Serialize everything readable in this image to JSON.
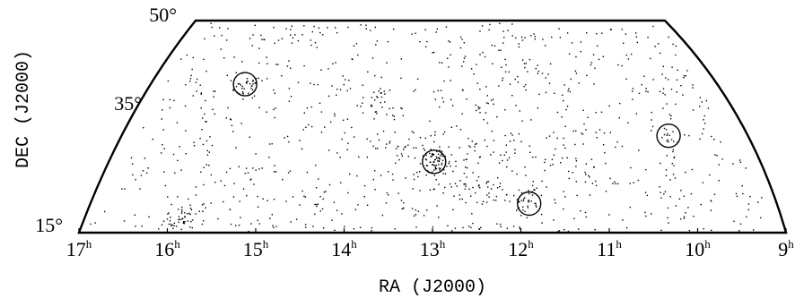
{
  "chart_data": {
    "type": "scatter",
    "projection": "wedge (cone) sky map",
    "xlabel": "RA (J2000)",
    "ylabel": "DEC (J2000)",
    "x_unit": "hours of right ascension",
    "y_unit": "degrees of declination",
    "xlim": [
      17,
      9
    ],
    "ylim": [
      15,
      50
    ],
    "x_reversed": true,
    "grid": false,
    "legend": "none",
    "x_ticks": [
      {
        "value": 17,
        "label": "17",
        "sup": "h"
      },
      {
        "value": 16,
        "label": "16",
        "sup": "h"
      },
      {
        "value": 15,
        "label": "15",
        "sup": "h"
      },
      {
        "value": 14,
        "label": "14",
        "sup": "h"
      },
      {
        "value": 13,
        "label": "13",
        "sup": "h"
      },
      {
        "value": 12,
        "label": "12",
        "sup": "h"
      },
      {
        "value": 11,
        "label": "11",
        "sup": "h"
      },
      {
        "value": 10,
        "label": "10",
        "sup": "h"
      },
      {
        "value": 9,
        "label": "9",
        "sup": "h"
      }
    ],
    "y_ticks": [
      {
        "value": 50,
        "label": "50°"
      },
      {
        "value": 35,
        "label": "35°"
      },
      {
        "value": 15,
        "label": "15°"
      }
    ],
    "highlighted_concentrations": [
      {
        "ra": 15.75,
        "dec": 39.5
      },
      {
        "ra": 12.97,
        "dec": 26.7
      },
      {
        "ra": 11.85,
        "dec": 19.8
      },
      {
        "ra": 9.83,
        "dec": 31.0
      }
    ],
    "dense_clumps": [
      {
        "ra": 15.75,
        "dec": 39.5,
        "spread_ra": 0.1,
        "spread_dec": 1.0,
        "n": 30
      },
      {
        "ra": 12.97,
        "dec": 26.7,
        "spread_ra": 0.08,
        "spread_dec": 0.9,
        "n": 60
      },
      {
        "ra": 11.85,
        "dec": 19.8,
        "spread_ra": 0.1,
        "spread_dec": 1.0,
        "n": 30
      },
      {
        "ra": 9.83,
        "dec": 31.0,
        "spread_ra": 0.08,
        "spread_dec": 0.8,
        "n": 14
      },
      {
        "ra": 15.9,
        "dec": 17.0,
        "spread_ra": 0.12,
        "spread_dec": 1.4,
        "n": 45
      },
      {
        "ra": 13.8,
        "dec": 37.0,
        "spread_ra": 0.12,
        "spread_dec": 1.5,
        "n": 25
      },
      {
        "ra": 13.3,
        "dec": 29.0,
        "spread_ra": 0.35,
        "spread_dec": 1.5,
        "n": 40
      },
      {
        "ra": 12.6,
        "dec": 25.0,
        "spread_ra": 0.4,
        "spread_dec": 2.0,
        "n": 40
      },
      {
        "ra": 12.3,
        "dec": 21.5,
        "spread_ra": 0.3,
        "spread_dec": 1.5,
        "n": 25
      },
      {
        "ra": 11.3,
        "dec": 27.0,
        "spread_ra": 0.4,
        "spread_dec": 2.5,
        "n": 25
      },
      {
        "ra": 14.5,
        "dec": 19.0,
        "spread_ra": 0.4,
        "spread_dec": 2.0,
        "n": 20
      },
      {
        "ra": 12.4,
        "dec": 15.8,
        "spread_ra": 0.2,
        "spread_dec": 0.6,
        "n": 20
      },
      {
        "ra": 10.7,
        "dec": 24.0,
        "spread_ra": 0.4,
        "spread_dec": 2.5,
        "n": 18
      }
    ],
    "background_point_count": 900,
    "point_color": "#000000"
  }
}
